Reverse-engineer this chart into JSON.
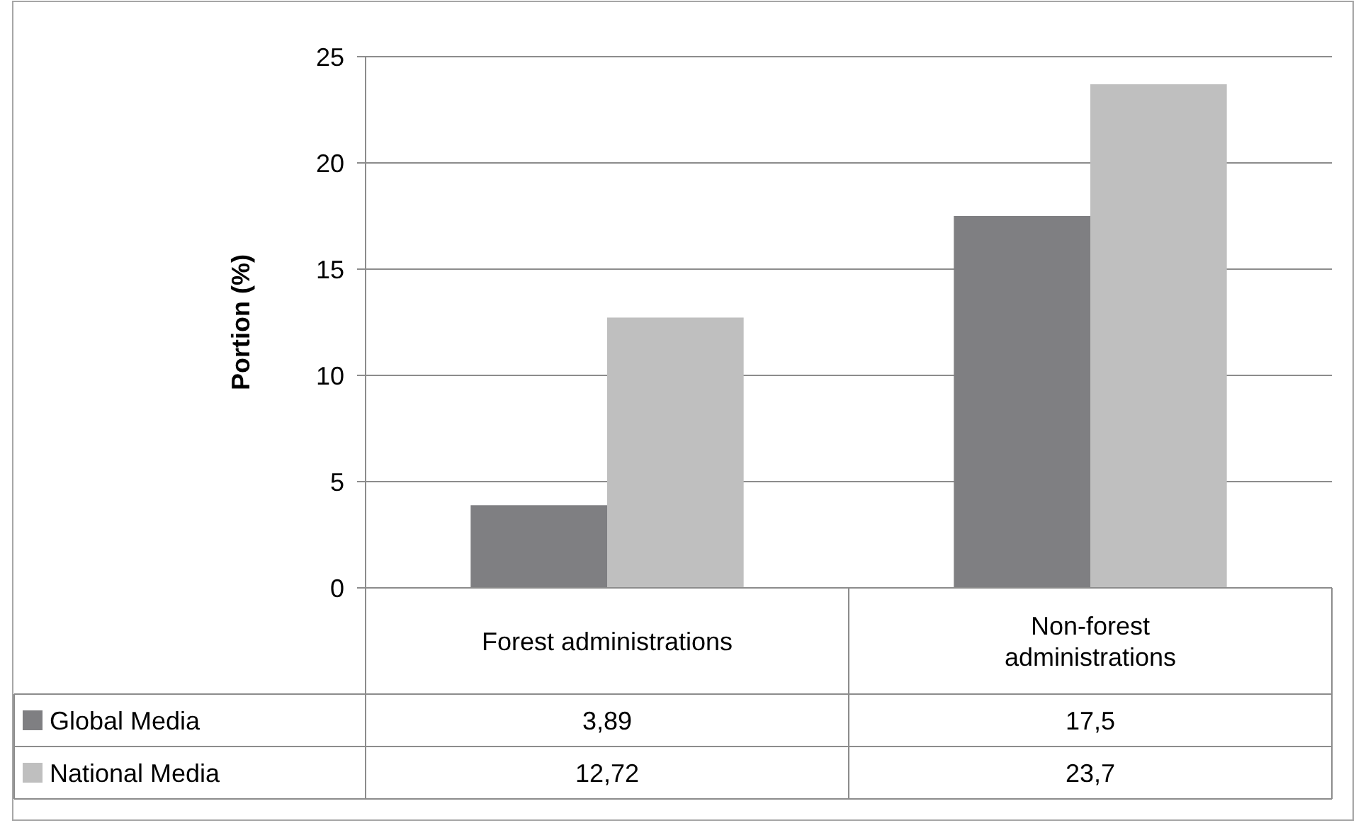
{
  "chart_data": {
    "type": "bar",
    "ylabel": "Portion (%)",
    "categories": [
      "Forest administrations",
      "Non-forest administrations"
    ],
    "series": [
      {
        "name": "Global Media",
        "color": "#7f7f82",
        "values": [
          3.89,
          17.5
        ],
        "value_labels": [
          "3,89",
          "17,5"
        ]
      },
      {
        "name": "National Media",
        "color": "#bfbfbf",
        "values": [
          12.72,
          23.7
        ],
        "value_labels": [
          "12,72",
          "23,7"
        ]
      }
    ],
    "ylim": [
      0,
      25
    ],
    "yticks": [
      0,
      5,
      10,
      15,
      20,
      25
    ],
    "grid": "y",
    "legend": "bottom left"
  }
}
